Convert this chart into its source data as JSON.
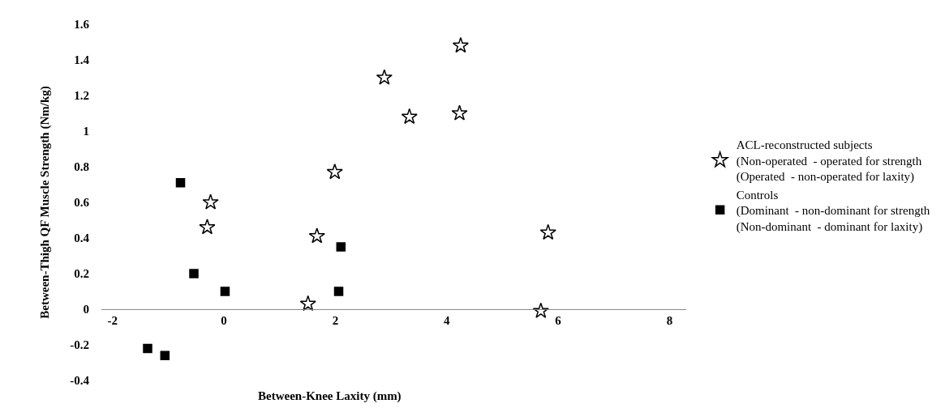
{
  "chart_data": {
    "type": "scatter",
    "xlabel": "Between-Knee Laxity (mm)",
    "ylabel": "Between-Thigh QF Muscle Strength (Nm/kg)",
    "xlim": [
      -2.2,
      8.3
    ],
    "xticks": [
      -2,
      0,
      2,
      4,
      6,
      8
    ],
    "ylim": [
      -0.4,
      1.6
    ],
    "yticks": [
      -0.4,
      -0.2,
      0,
      0.2,
      0.4,
      0.6,
      0.8,
      1,
      1.2,
      1.4,
      1.6
    ],
    "grid": false,
    "legend": "right",
    "series": [
      {
        "name": "ACL-reconstructed subjects\n(Non-operated  - operated for strength\n(Operated  - non-operated for laxity)",
        "color": "#000000",
        "marker": "star",
        "x": [
          4.25,
          2.88,
          3.33,
          4.23,
          1.99,
          -0.24,
          -0.3,
          1.67,
          1.51,
          5.82,
          5.69
        ],
        "values": [
          1.48,
          1.3,
          1.08,
          1.1,
          0.77,
          0.6,
          0.46,
          0.41,
          0.03,
          0.43,
          -0.01
        ]
      },
      {
        "name": "Controls\n(Dominant  - non-dominant for strength\n(Non-dominant  - dominant for laxity)",
        "color": "#000000",
        "marker": "square",
        "x": [
          -0.78,
          -0.54,
          0.02,
          2.1,
          2.06,
          -1.37,
          -1.06
        ],
        "values": [
          0.71,
          0.2,
          0.1,
          0.35,
          0.1,
          -0.22,
          -0.26
        ]
      }
    ]
  }
}
